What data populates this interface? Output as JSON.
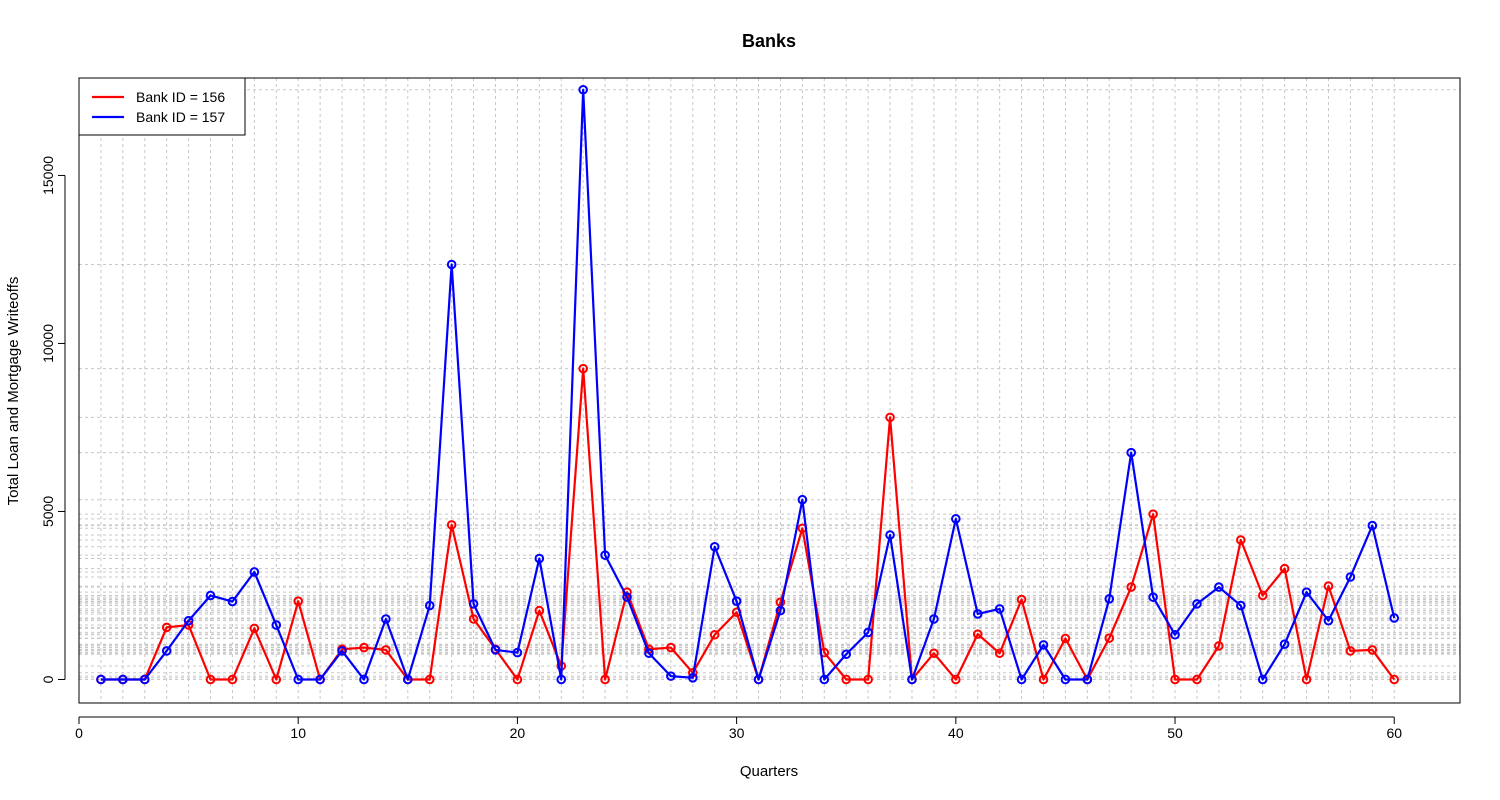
{
  "chart_data": {
    "type": "line",
    "title": "Banks",
    "xlabel": "Quarters",
    "ylabel": "Total Loan and Mortgage Writeoffs",
    "xlim": [
      0,
      63
    ],
    "ylim": [
      -700,
      17900
    ],
    "xticks": [
      0,
      10,
      20,
      30,
      40,
      50,
      60
    ],
    "yticks": [
      0,
      5000,
      10000,
      15000
    ],
    "grid": true,
    "legend_position": "top-left",
    "x": [
      1,
      2,
      3,
      4,
      5,
      6,
      7,
      8,
      9,
      10,
      11,
      12,
      13,
      14,
      15,
      16,
      17,
      18,
      19,
      20,
      21,
      22,
      23,
      24,
      25,
      26,
      27,
      28,
      29,
      30,
      31,
      32,
      33,
      34,
      35,
      36,
      37,
      38,
      39,
      40,
      41,
      42,
      43,
      44,
      45,
      46,
      47,
      48,
      49,
      50,
      51,
      52,
      53,
      54,
      55,
      56,
      57,
      58,
      59,
      60
    ],
    "series": [
      {
        "name": "Bank ID = 156",
        "color": "#ff0000",
        "values": [
          0,
          0,
          0,
          1550,
          1620,
          0,
          0,
          1520,
          0,
          2330,
          0,
          900,
          950,
          880,
          0,
          0,
          4600,
          1800,
          900,
          0,
          2050,
          400,
          9250,
          0,
          2600,
          900,
          950,
          200,
          1330,
          2000,
          0,
          2300,
          4500,
          800,
          0,
          0,
          7800,
          0,
          780,
          0,
          1350,
          780,
          2380,
          0,
          1220,
          0,
          1230,
          2750,
          4920,
          0,
          0,
          1000,
          4150,
          2500,
          3300,
          0,
          2780,
          850,
          880,
          0
        ]
      },
      {
        "name": "Bank ID = 157",
        "color": "#0000ff",
        "values": [
          0,
          0,
          0,
          850,
          1750,
          2500,
          2320,
          3200,
          1620,
          0,
          0,
          850,
          0,
          1800,
          0,
          2200,
          12350,
          2250,
          880,
          800,
          3600,
          0,
          17550,
          3700,
          2450,
          780,
          100,
          50,
          3950,
          2330,
          0,
          2050,
          5350,
          0,
          750,
          1400,
          4300,
          0,
          1800,
          4780,
          1950,
          2100,
          0,
          1030,
          0,
          0,
          2400,
          6750,
          2450,
          1330,
          2250,
          2750,
          2200,
          0,
          1050,
          2600,
          1750,
          3050,
          4580,
          1830
        ]
      }
    ]
  }
}
